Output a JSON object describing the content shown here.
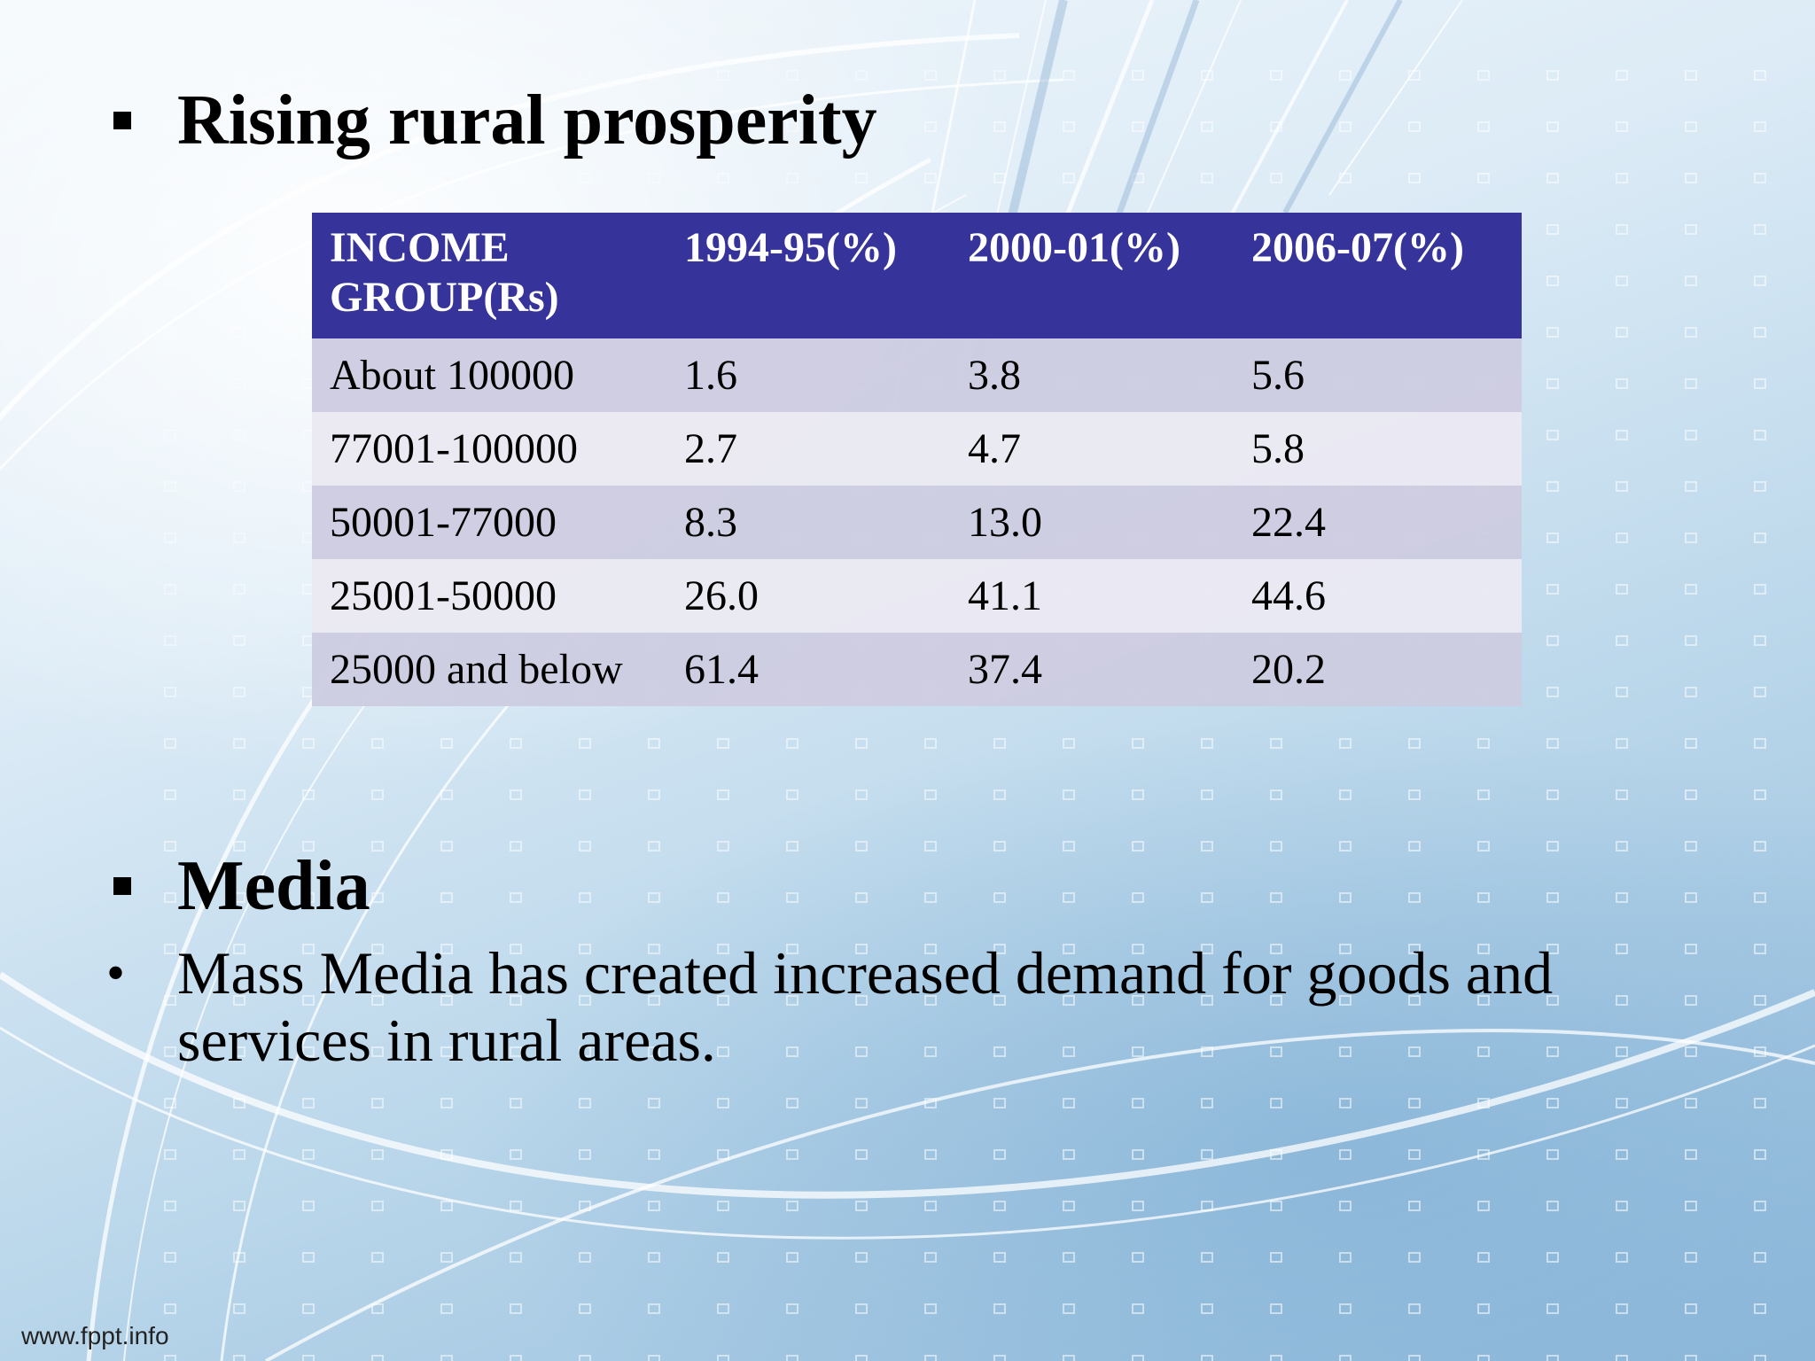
{
  "slide": {
    "heading_1": "Rising rural prosperity",
    "heading_2": "Media",
    "bullet_text": "Mass Media has created increased demand for goods and services in rural areas.",
    "bullet_glyph": "•",
    "footer": "www.fppt.info"
  },
  "table": {
    "headers": [
      "INCOME GROUP(Rs)",
      "1994-95(%)",
      "2000-01(%)",
      "2006-07(%)"
    ],
    "rows": [
      [
        "About 100000",
        "1.6",
        "3.8",
        "5.6"
      ],
      [
        "77001-100000",
        "2.7",
        "4.7",
        "5.8"
      ],
      [
        "50001-77000",
        "8.3",
        "13.0",
        "22.4"
      ],
      [
        "25001-50000",
        "26.0",
        "41.1",
        "44.6"
      ],
      [
        "25000 and below",
        "61.4",
        "37.4",
        "20.2"
      ]
    ]
  },
  "colors": {
    "header_bg": "#36339a",
    "row_odd_bg": "#cdcce1",
    "row_even_bg": "#eae9f3"
  }
}
